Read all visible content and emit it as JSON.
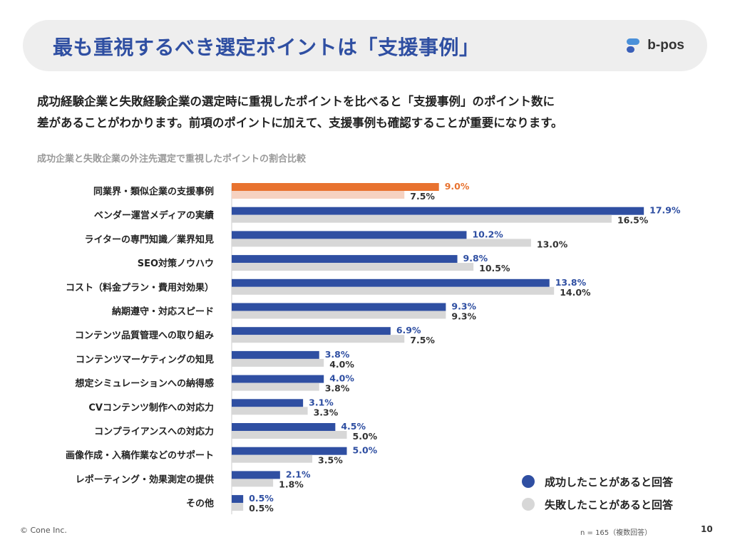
{
  "header": {
    "title": "最も重視するべき選定ポイントは「支援事例」",
    "logo_text": "b-pos"
  },
  "intro": {
    "line1": "成功経験企業と失敗経験企業の選定時に重視したポイントを比べると「支援事例」のポイント数に",
    "line2": "差があることがわかります。前項のポイントに加えて、支援事例も確認することが重要になります。"
  },
  "chart_title": "成功企業と失敗企業の外注先選定で重視したポイントの割合比較",
  "chart_data": {
    "type": "bar",
    "orientation": "horizontal",
    "categories": [
      "同業界・類似企業の支援事例",
      "ベンダー運営メディアの実績",
      "ライターの専門知識／業界知見",
      "SEO対策ノウハウ",
      "コスト（料金プラン・費用対効果）",
      "納期遵守・対応スピード",
      "コンテンツ品質管理への取り組み",
      "コンテンツマーケティングの知見",
      "想定シミュレーションへの納得感",
      "CVコンテンツ制作への対応力",
      "コンプライアンスへの対応力",
      "画像作成・入稿作業などのサポート",
      "レポーティング・効果測定の提供",
      "その他"
    ],
    "series": [
      {
        "name": "成功したことがあると回答",
        "values": [
          9.0,
          17.9,
          10.2,
          9.8,
          13.8,
          9.3,
          6.9,
          3.8,
          4.0,
          3.1,
          4.5,
          5.0,
          2.1,
          0.5
        ],
        "labels": [
          "9.0%",
          "17.9%",
          "10.2%",
          "9.8%",
          "13.8%",
          "9.3%",
          "6.9%",
          "3.8%",
          "4.0%",
          "3.1%",
          "4.5%",
          "5.0%",
          "2.1%",
          "0.5%"
        ]
      },
      {
        "name": "失敗したことがあると回答",
        "values": [
          7.5,
          16.5,
          13.0,
          10.5,
          14.0,
          9.3,
          7.5,
          4.0,
          3.8,
          3.3,
          5.0,
          3.5,
          1.8,
          0.5
        ],
        "labels": [
          "7.5%",
          "16.5%",
          "13.0%",
          "10.5%",
          "14.0%",
          "9.3%",
          "7.5%",
          "4.0%",
          "3.8%",
          "3.3%",
          "5.0%",
          "3.5%",
          "1.8%",
          "0.5%"
        ]
      }
    ],
    "highlight_index": 0,
    "xlim": [
      0,
      18
    ],
    "colors": {
      "success": "#2f4fa2",
      "failure": "#d7d7d7",
      "highlight": "#e8722f",
      "highlight_failure": "#f6d2c1"
    },
    "grid": false,
    "legend_position": "bottom-right"
  },
  "legend": {
    "success_label": "成功したことがあると回答",
    "failure_label": "失敗したことがあると回答"
  },
  "footer": {
    "copyright": "© Cone Inc.",
    "note": "n = 165（複数回答）",
    "page": "10"
  }
}
